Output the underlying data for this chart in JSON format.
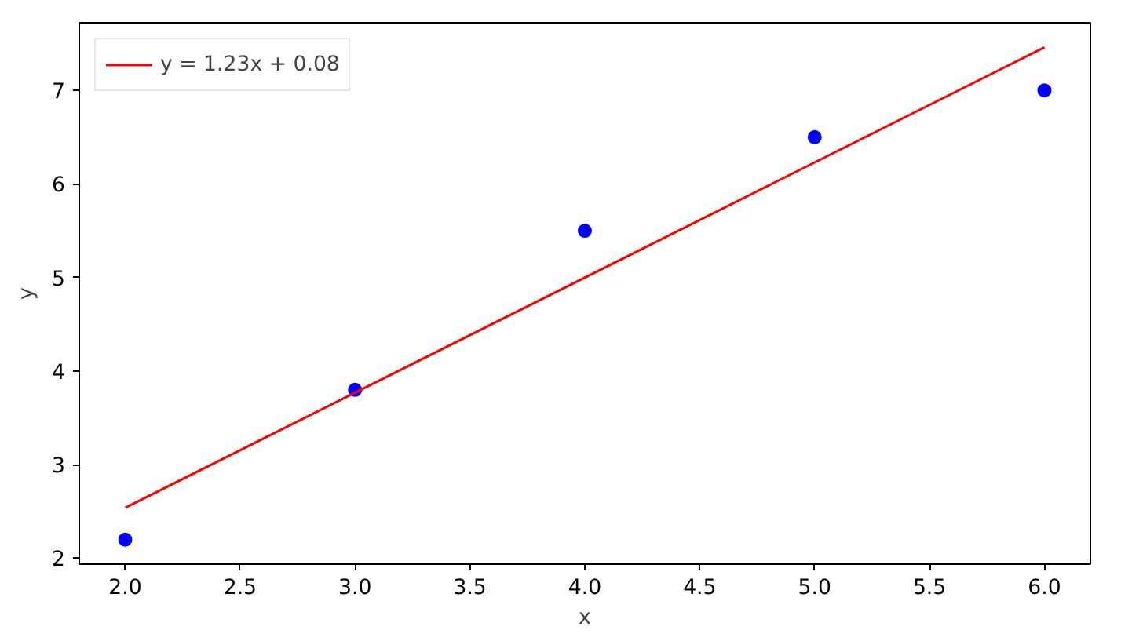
{
  "chart_data": {
    "type": "scatter",
    "xlabel": "x",
    "ylabel": "y",
    "xlim": [
      1.8,
      6.2
    ],
    "ylim": [
      1.937,
      7.723
    ],
    "xticks": [
      {
        "value": 2,
        "label": "2.0"
      },
      {
        "value": 2.5,
        "label": "2.5"
      },
      {
        "value": 3,
        "label": "3.0"
      },
      {
        "value": 3.5,
        "label": "3.5"
      },
      {
        "value": 4,
        "label": "4.0"
      },
      {
        "value": 4.5,
        "label": "4.5"
      },
      {
        "value": 5,
        "label": "5.0"
      },
      {
        "value": 5.5,
        "label": "5.5"
      },
      {
        "value": 6,
        "label": "6.0"
      }
    ],
    "yticks": [
      2,
      3,
      4,
      5,
      6,
      7
    ],
    "grid": false,
    "legend": "top left",
    "marker": "circle",
    "series": [
      {
        "color": "#0000ff",
        "x": [
          2,
          3,
          4,
          5,
          6
        ],
        "values": [
          2.2,
          3.8,
          5.5,
          6.5,
          7.0
        ]
      },
      {
        "type": "line",
        "name": "y = 1.23x + 0.08",
        "color": "#ff0000",
        "x": [
          2,
          6
        ],
        "values": [
          2.54,
          7.46
        ],
        "marker": "none",
        "line_style": "solid"
      }
    ]
  }
}
